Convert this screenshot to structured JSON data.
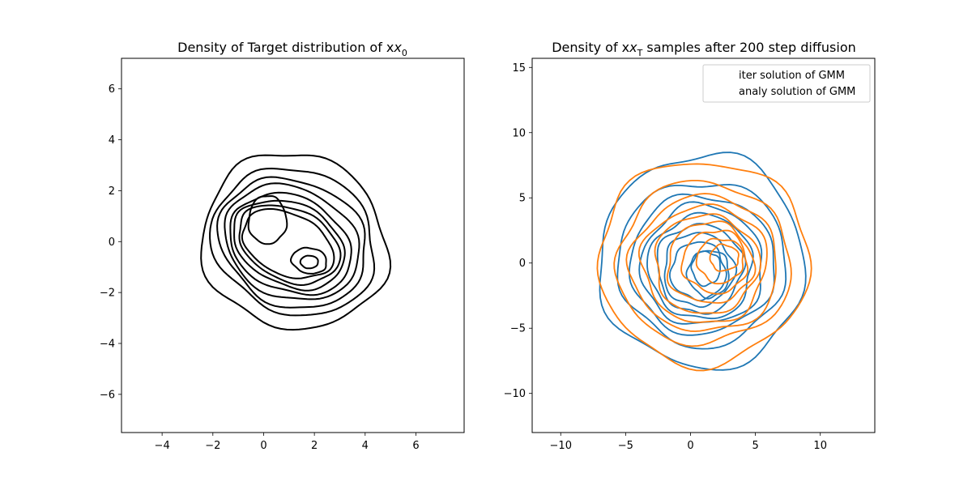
{
  "chart_data": [
    {
      "type": "contour",
      "title_main": "Density of Target distribution of x",
      "title_subscript": "0",
      "xlabel": "",
      "ylabel": "",
      "xlim": [
        -5.6,
        7.9
      ],
      "ylim": [
        -7.5,
        7.2
      ],
      "xticks": [
        -4,
        -2,
        0,
        2,
        4,
        6
      ],
      "yticks": [
        -6,
        -4,
        -2,
        0,
        2,
        4,
        6
      ],
      "grid": false,
      "series": [
        {
          "color": "#000000",
          "contours": [
            {
              "cx": 1.2,
              "cy": 0.0,
              "rx": 3.7,
              "ry": 3.4,
              "rot": -25,
              "wob": 0.06,
              "seed": 1
            },
            {
              "cx": 1.2,
              "cy": 0.0,
              "rx": 3.3,
              "ry": 2.8,
              "rot": -25,
              "wob": 0.05,
              "seed": 2
            },
            {
              "cx": 1.15,
              "cy": -0.05,
              "rx": 3.0,
              "ry": 2.45,
              "rot": -25,
              "wob": 0.05,
              "seed": 3
            },
            {
              "cx": 1.1,
              "cy": -0.05,
              "rx": 2.75,
              "ry": 2.15,
              "rot": -25,
              "wob": 0.04,
              "seed": 4
            },
            {
              "cx": 1.05,
              "cy": -0.1,
              "rx": 2.5,
              "ry": 1.85,
              "rot": -25,
              "wob": 0.04,
              "seed": 5
            },
            {
              "cx": 1.0,
              "cy": -0.1,
              "rx": 2.3,
              "ry": 1.6,
              "rot": -25,
              "wob": 0.04,
              "seed": 6
            },
            {
              "cx": 1.0,
              "cy": -0.1,
              "rx": 2.1,
              "ry": 1.4,
              "rot": -25,
              "wob": 0.04,
              "seed": 7
            },
            {
              "cx": 0.95,
              "cy": -0.1,
              "rx": 1.9,
              "ry": 1.2,
              "rot": -25,
              "wob": 0.04,
              "seed": 8
            },
            {
              "cx": 0.15,
              "cy": 0.85,
              "rx": 0.75,
              "ry": 0.95,
              "rot": 0,
              "wob": 0.05,
              "seed": 9
            },
            {
              "cx": 1.8,
              "cy": -0.75,
              "rx": 0.7,
              "ry": 0.5,
              "rot": -10,
              "wob": 0.05,
              "seed": 10
            },
            {
              "cx": 1.8,
              "cy": -0.8,
              "rx": 0.35,
              "ry": 0.25,
              "rot": 0,
              "wob": 0.03,
              "seed": 11
            }
          ]
        }
      ]
    },
    {
      "type": "contour",
      "title_main": "Density of x",
      "title_subscript": "T",
      "title_rest": " samples after 200 step diffusion",
      "xlabel": "",
      "ylabel": "",
      "xlim": [
        -12.2,
        14.2
      ],
      "ylim": [
        -13,
        15.7
      ],
      "xticks": [
        -10,
        -5,
        0,
        5,
        10
      ],
      "yticks": [
        -10,
        -5,
        0,
        5,
        10,
        15
      ],
      "grid": false,
      "legend_position": "top-right",
      "legend": [
        "iter solution of GMM",
        "analy solution of GMM"
      ],
      "series": [
        {
          "name": "iter solution of GMM",
          "color": "#1f77b4",
          "contours": [
            {
              "cx": 0.9,
              "cy": 0.1,
              "rx": 7.9,
              "ry": 8.2,
              "rot": 0,
              "wob": 0.06,
              "seed": 21
            },
            {
              "cx": 0.9,
              "cy": 0.0,
              "rx": 6.5,
              "ry": 6.3,
              "rot": 0,
              "wob": 0.06,
              "seed": 22
            },
            {
              "cx": 0.9,
              "cy": -0.1,
              "rx": 5.6,
              "ry": 5.3,
              "rot": 0,
              "wob": 0.06,
              "seed": 23
            },
            {
              "cx": 0.9,
              "cy": -0.2,
              "rx": 4.7,
              "ry": 4.6,
              "rot": 0,
              "wob": 0.07,
              "seed": 24
            },
            {
              "cx": 0.8,
              "cy": -0.3,
              "rx": 4.0,
              "ry": 4.0,
              "rot": 0,
              "wob": 0.07,
              "seed": 25
            },
            {
              "cx": 0.7,
              "cy": -0.4,
              "rx": 3.3,
              "ry": 3.4,
              "rot": 0,
              "wob": 0.08,
              "seed": 26
            },
            {
              "cx": 0.6,
              "cy": -0.5,
              "rx": 2.7,
              "ry": 2.8,
              "rot": 0,
              "wob": 0.08,
              "seed": 27
            },
            {
              "cx": 0.6,
              "cy": -0.6,
              "rx": 2.1,
              "ry": 2.2,
              "rot": 0,
              "wob": 0.08,
              "seed": 28
            },
            {
              "cx": 1.4,
              "cy": -0.8,
              "rx": 1.6,
              "ry": 1.8,
              "rot": 0,
              "wob": 0.08,
              "seed": 29
            },
            {
              "cx": 1.2,
              "cy": -0.4,
              "rx": 1.1,
              "ry": 1.3,
              "rot": 0,
              "wob": 0.08,
              "seed": 30
            }
          ]
        },
        {
          "name": "analy solution of GMM",
          "color": "#ff7f0e",
          "contours": [
            {
              "cx": 1.0,
              "cy": 0.1,
              "rx": 8.1,
              "ry": 7.8,
              "rot": 0,
              "wob": 0.06,
              "seed": 41
            },
            {
              "cx": 1.0,
              "cy": 0.0,
              "rx": 6.7,
              "ry": 6.2,
              "rot": 0,
              "wob": 0.06,
              "seed": 42
            },
            {
              "cx": 1.1,
              "cy": -0.1,
              "rx": 5.7,
              "ry": 5.2,
              "rot": 0,
              "wob": 0.06,
              "seed": 43
            },
            {
              "cx": 1.1,
              "cy": -0.1,
              "rx": 4.8,
              "ry": 4.5,
              "rot": 0,
              "wob": 0.07,
              "seed": 44
            },
            {
              "cx": 1.2,
              "cy": -0.1,
              "rx": 4.0,
              "ry": 3.8,
              "rot": 0,
              "wob": 0.07,
              "seed": 45
            },
            {
              "cx": 1.5,
              "cy": 0.0,
              "rx": 3.3,
              "ry": 3.1,
              "rot": 0,
              "wob": 0.08,
              "seed": 46
            },
            {
              "cx": 1.9,
              "cy": 0.1,
              "rx": 2.5,
              "ry": 2.4,
              "rot": 0,
              "wob": 0.08,
              "seed": 47
            },
            {
              "cx": 2.3,
              "cy": 0.2,
              "rx": 1.8,
              "ry": 1.7,
              "rot": 0,
              "wob": 0.08,
              "seed": 48
            },
            {
              "cx": 2.6,
              "cy": 0.4,
              "rx": 1.1,
              "ry": 1.0,
              "rot": 0,
              "wob": 0.08,
              "seed": 49
            }
          ]
        }
      ]
    }
  ]
}
